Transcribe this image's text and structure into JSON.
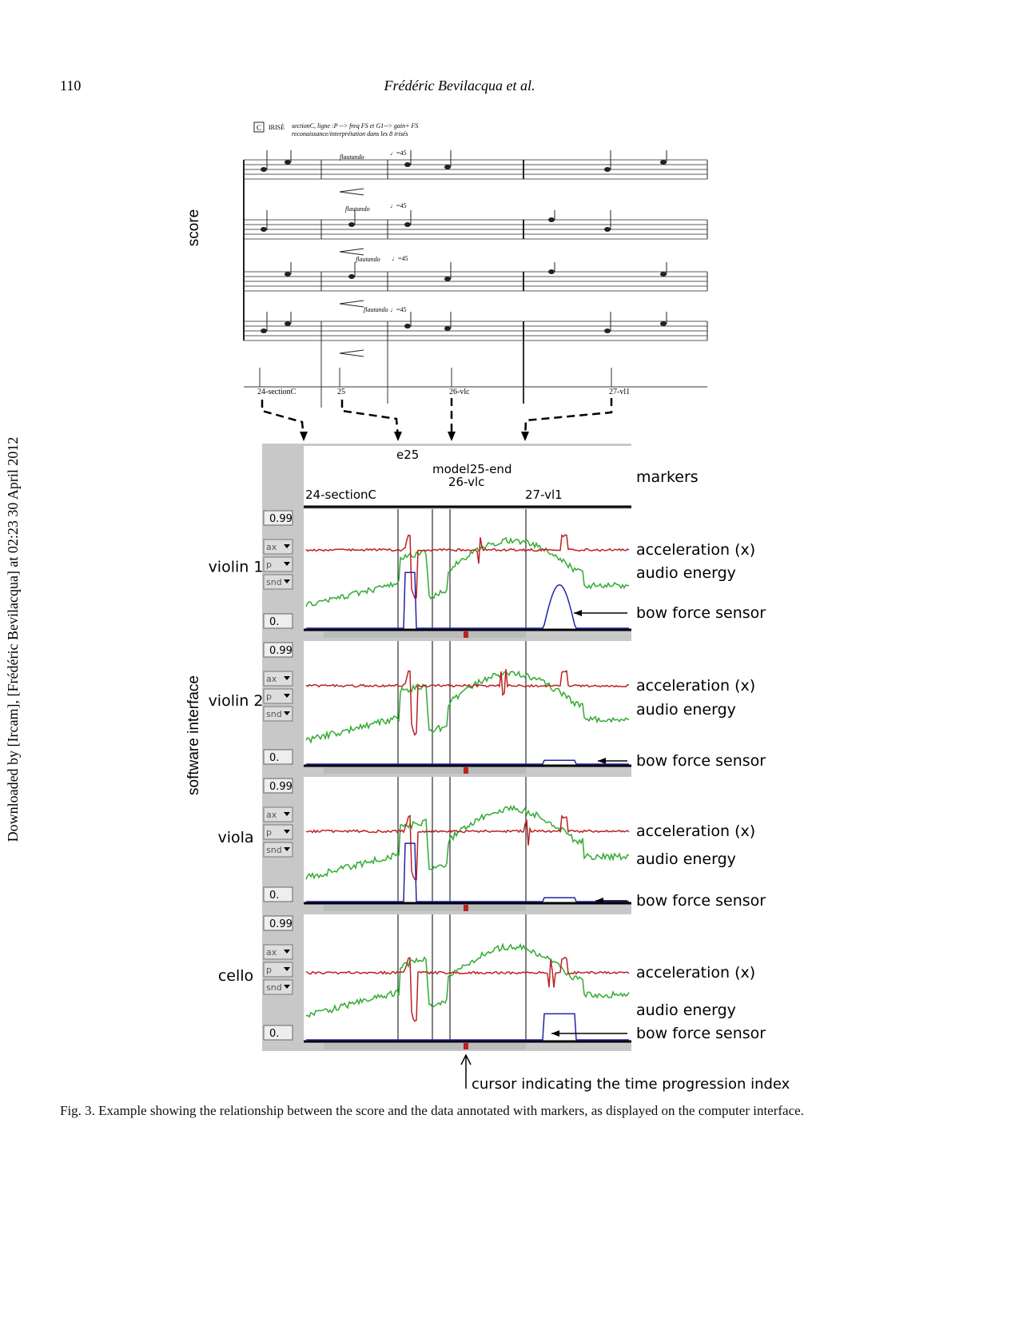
{
  "header": {
    "page_number": "110",
    "running_title": "Frédéric Bevilacqua et al."
  },
  "sidebar": "Downloaded by [Ircam], [Frédéric Bevilacqua] at 02:23 30 April 2012",
  "figure": {
    "section_labels": {
      "score": "score",
      "software": "software interface"
    },
    "score": {
      "rehearsal": "C",
      "section_name": "IRISÉ",
      "instructions": [
        "sectionC, ligne :P --> freq FS et G1--> gain+ FS",
        "reconaissance/interprétation dans les 8 irisés"
      ],
      "expression": "flautando",
      "tempo": "♩=45",
      "markers": [
        "24-sectionC",
        "25",
        "26-vlc",
        "27-vl1"
      ]
    },
    "interface": {
      "markers_label": "markers",
      "markers": [
        "24-sectionC",
        "e25",
        "model25-end",
        "26-vlc",
        "27-vl1"
      ],
      "tracks": [
        {
          "name": "violin 1",
          "max": "0.99",
          "min": "0.",
          "menus": [
            "ax",
            "p",
            "snd"
          ],
          "signals": [
            "acceleration (x)",
            "audio energy",
            "bow force sensor"
          ]
        },
        {
          "name": "violin 2",
          "max": "0.99",
          "min": "0.",
          "menus": [
            "ax",
            "p",
            "snd"
          ],
          "signals": [
            "acceleration (x)",
            "audio energy",
            "bow force sensor"
          ]
        },
        {
          "name": "viola",
          "max": "0.99",
          "min": "0.",
          "menus": [
            "ax",
            "p",
            "snd"
          ],
          "signals": [
            "acceleration (x)",
            "audio energy",
            "bow force sensor"
          ]
        },
        {
          "name": "cello",
          "max": "0.99",
          "min": "0.",
          "menus": [
            "ax",
            "p",
            "snd"
          ],
          "signals": [
            "acceleration (x)",
            "audio energy",
            "bow force sensor"
          ]
        }
      ],
      "cursor_label": "cursor indicating the time progression index"
    },
    "caption": "Fig. 3. Example showing the relationship between the score and the data annotated with markers, as displayed on the computer interface."
  }
}
